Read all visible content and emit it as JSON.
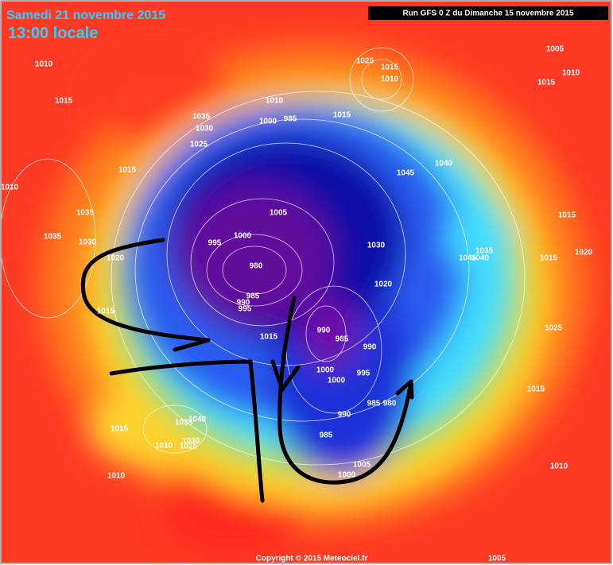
{
  "header": {
    "date": "Samedi 21 novembre 2015",
    "time": "13:00 locale",
    "run": "Run GFS 0 Z du Dimanche 15 novembre 2015"
  },
  "footer": {
    "copyright": "Copyright © 2015 Meteociel.fr"
  },
  "isobar_labels": [
    "1010",
    "1015",
    "1035",
    "1030",
    "1025",
    "1015",
    "1010",
    "1035",
    "1035",
    "1030",
    "1020",
    "1015",
    "1025",
    "1015",
    "1010",
    "1010",
    "1000",
    "985",
    "1015",
    "1005",
    "1010",
    "1015",
    "1045",
    "1040",
    "1005",
    "995",
    "1000",
    "980",
    "985",
    "990",
    "995",
    "1030",
    "1020",
    "1035",
    "1045",
    "1040",
    "1015",
    "1015",
    "1020",
    "1025",
    "990",
    "985",
    "990",
    "995",
    "1000",
    "1000",
    "1015",
    "985",
    "980",
    "990",
    "985",
    "1005",
    "1000",
    "1015",
    "1010",
    "1005",
    "1015",
    "1035",
    "1040",
    "1030",
    "1025",
    "1010",
    "1010"
  ]
}
